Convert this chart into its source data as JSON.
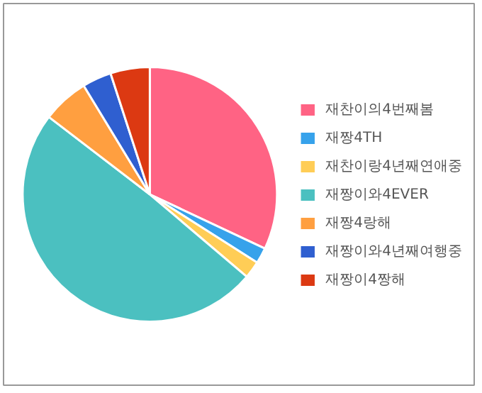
{
  "chart_data": {
    "type": "pie",
    "categories": [
      "재찬이의4번째봄",
      "재짱4TH",
      "재찬이랑4년째연애중",
      "재짱이와4EVER",
      "재짱4랑해",
      "재짱이와4년째여행중",
      "재짱이4짱해"
    ],
    "values": [
      32,
      2,
      2.2,
      49.2,
      5.9,
      3.7,
      5.0
    ],
    "colors": [
      "#ff6384",
      "#36a2eb",
      "#ffcd56",
      "#4bc0c0",
      "#ff9f40",
      "#2f5fd0",
      "#dc3912"
    ],
    "legend": "right"
  }
}
